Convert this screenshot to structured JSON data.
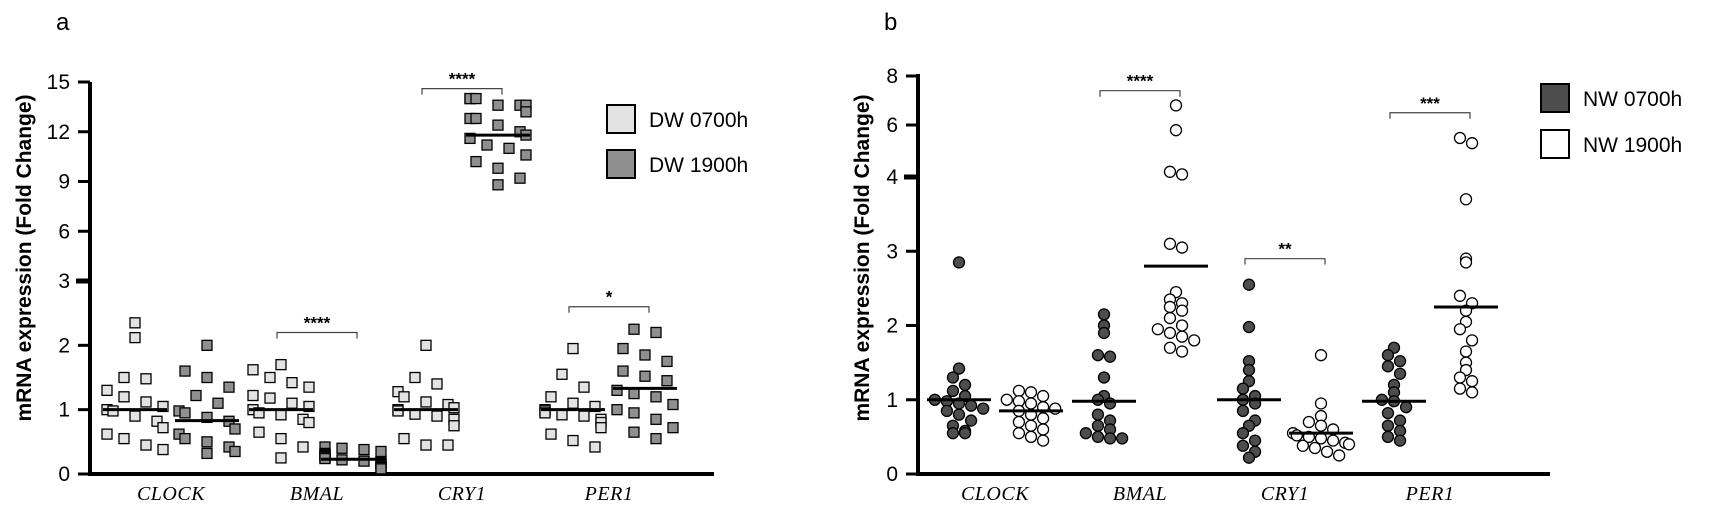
{
  "chart_data": [
    {
      "panel": "a",
      "type": "scatter",
      "ylabel": "mRNA expression (Fold Change)",
      "axis_break": true,
      "y_ticks_lower": [
        "0",
        "1",
        "2",
        "3"
      ],
      "y_ticks_upper": [
        "6",
        "9",
        "12",
        "15"
      ],
      "y_lower_range": [
        0,
        3
      ],
      "y_upper_range": [
        3,
        15
      ],
      "categories": [
        "CLOCK",
        "BMAL",
        "CRY1",
        "PER1"
      ],
      "legend": [
        {
          "label": "DW 0700h",
          "color": "#e3e3e3"
        },
        {
          "label": "DW 1900h",
          "color": "#8f8f8f"
        }
      ],
      "marker": "square",
      "series": [
        {
          "name": "DW 0700h",
          "color": "#e3e3e3",
          "points": [
            [
              2.35,
              2.12,
              1.5,
              1.48,
              1.3,
              1.2,
              1.12,
              1.05,
              1.0,
              0.98,
              0.9,
              0.82,
              0.72,
              0.62,
              0.55,
              0.45,
              0.38
            ],
            [
              1.7,
              1.62,
              1.5,
              1.42,
              1.35,
              1.22,
              1.18,
              1.1,
              1.05,
              1.0,
              0.95,
              0.92,
              0.85,
              0.8,
              0.65,
              0.55,
              0.42,
              0.25
            ],
            [
              2.0,
              1.5,
              1.4,
              1.28,
              1.2,
              1.12,
              1.08,
              1.03,
              1.0,
              0.98,
              0.93,
              0.9,
              0.85,
              0.75,
              0.55,
              0.45,
              0.45
            ],
            [
              1.95,
              1.55,
              1.35,
              1.2,
              1.1,
              1.05,
              1.0,
              0.98,
              0.95,
              0.92,
              0.9,
              0.85,
              0.8,
              0.72,
              0.62,
              0.52,
              0.42
            ]
          ],
          "means": [
            1.0,
            1.0,
            1.0,
            1.0
          ]
        },
        {
          "name": "DW 1900h",
          "color": "#8f8f8f",
          "points": [
            [
              2.0,
              1.6,
              1.5,
              1.35,
              1.22,
              1.1,
              0.98,
              0.95,
              0.88,
              0.82,
              0.7,
              0.62,
              0.55,
              0.5,
              0.42,
              0.35,
              0.32
            ],
            [
              0.42,
              0.4,
              0.38,
              0.35,
              0.32,
              0.3,
              0.28,
              0.27,
              0.25,
              0.24,
              0.22,
              0.2,
              0.19,
              0.18,
              0.15,
              0.12,
              0.1,
              0.08
            ],
            [
              14.0,
              14.0,
              14.0,
              13.6,
              13.6,
              13.6,
              13.2,
              12.8,
              12.8,
              12.4,
              12.0,
              11.8,
              11.6,
              11.2,
              11.0,
              10.6,
              10.2,
              9.8,
              9.2,
              8.8
            ],
            [
              2.25,
              2.2,
              1.95,
              1.85,
              1.75,
              1.6,
              1.52,
              1.45,
              1.3,
              1.25,
              1.2,
              1.08,
              1.0,
              0.95,
              0.85,
              0.72,
              0.65,
              0.55
            ]
          ],
          "means": [
            0.83,
            0.23,
            11.8,
            1.33
          ]
        }
      ],
      "significance": [
        {
          "category": "BMAL",
          "label": "****",
          "y": 2.2
        },
        {
          "category": "CRY1",
          "label": "****",
          "y": 14.6
        },
        {
          "category": "PER1",
          "label": "*",
          "y": 2.6
        }
      ]
    },
    {
      "panel": "b",
      "type": "scatter",
      "ylabel": "mRNA expression (Fold Change)",
      "axis_break": true,
      "y_ticks_lower": [
        "0",
        "1",
        "2",
        "3",
        "4"
      ],
      "y_ticks_upper": [
        "6",
        "8"
      ],
      "y_lower_range": [
        0,
        4
      ],
      "y_upper_range": [
        4,
        8
      ],
      "categories": [
        "CLOCK",
        "BMAL",
        "CRY1",
        "PER1"
      ],
      "legend": [
        {
          "label": "NW 0700h",
          "color": "#4d4d4d"
        },
        {
          "label": "NW 1900h",
          "color": "#ffffff"
        }
      ],
      "marker": "circle",
      "series": [
        {
          "name": "NW 0700h",
          "color": "#4d4d4d",
          "points": [
            [
              2.85,
              1.42,
              1.3,
              1.2,
              1.12,
              1.05,
              1.0,
              0.98,
              0.95,
              0.92,
              0.88,
              0.85,
              0.8,
              0.72,
              0.65,
              0.58,
              0.55,
              0.55
            ],
            [
              2.15,
              2.0,
              1.9,
              1.6,
              1.58,
              1.3,
              1.05,
              1.0,
              0.95,
              0.8,
              0.72,
              0.65,
              0.6,
              0.55,
              0.5,
              0.48,
              0.48
            ],
            [
              2.55,
              1.98,
              1.52,
              1.4,
              1.25,
              1.15,
              1.05,
              1.0,
              0.95,
              0.85,
              0.72,
              0.65,
              0.55,
              0.45,
              0.38,
              0.3,
              0.22
            ],
            [
              1.7,
              1.6,
              1.52,
              1.45,
              1.35,
              1.2,
              1.1,
              1.0,
              0.98,
              0.9,
              0.82,
              0.72,
              0.65,
              0.58,
              0.5,
              0.45
            ]
          ],
          "means": [
            1.0,
            0.98,
            1.0,
            0.98
          ]
        },
        {
          "name": "NW 1900h",
          "color": "#ffffff",
          "points": [
            [
              1.12,
              1.1,
              1.05,
              1.0,
              0.98,
              0.95,
              0.9,
              0.88,
              0.85,
              0.8,
              0.75,
              0.7,
              0.65,
              0.6,
              0.55,
              0.5,
              0.45
            ],
            [
              6.8,
              5.8,
              4.2,
              4.1,
              3.1,
              3.05,
              2.45,
              2.35,
              2.3,
              2.25,
              2.2,
              2.1,
              2.0,
              1.95,
              1.9,
              1.85,
              1.8,
              1.7,
              1.65
            ],
            [
              1.6,
              0.95,
              0.78,
              0.7,
              0.65,
              0.6,
              0.55,
              0.52,
              0.5,
              0.48,
              0.45,
              0.42,
              0.4,
              0.38,
              0.35,
              0.3,
              0.25
            ],
            [
              5.5,
              5.3,
              3.7,
              2.9,
              2.85,
              2.4,
              2.3,
              2.2,
              2.05,
              1.95,
              1.8,
              1.65,
              1.5,
              1.4,
              1.3,
              1.25,
              1.15,
              1.1
            ]
          ],
          "means": [
            0.85,
            2.8,
            0.55,
            2.25
          ]
        }
      ],
      "significance": [
        {
          "category": "BMAL",
          "label": "****",
          "y": 7.4
        },
        {
          "category": "CRY1",
          "label": "**",
          "y": 2.9
        },
        {
          "category": "PER1",
          "label": "***",
          "y": 6.5
        }
      ]
    }
  ]
}
